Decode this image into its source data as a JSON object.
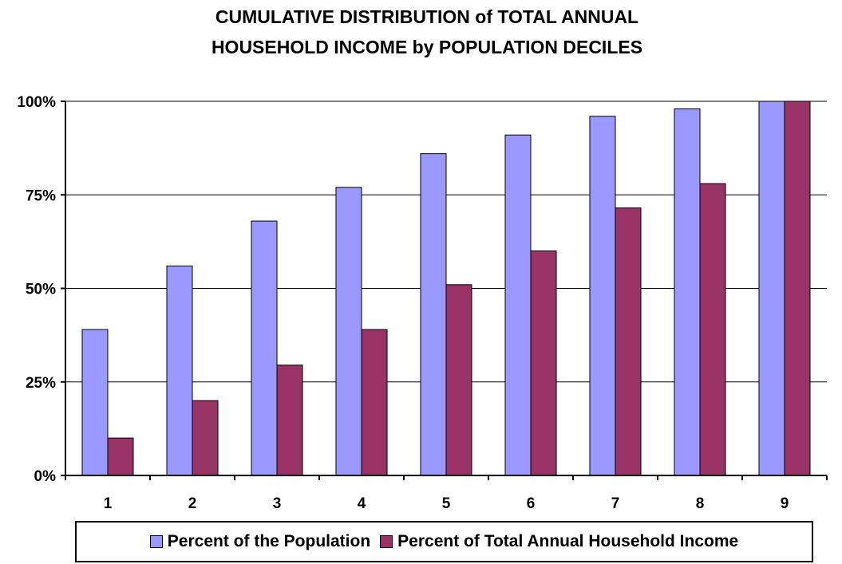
{
  "chart_data": {
    "type": "bar",
    "title_lines": [
      "CUMULATIVE DISTRIBUTION of TOTAL ANNUAL",
      "HOUSEHOLD INCOME by POPULATION DECILES"
    ],
    "categories": [
      "1",
      "2",
      "3",
      "4",
      "5",
      "6",
      "7",
      "8",
      "9"
    ],
    "series": [
      {
        "name": "Percent of the Population",
        "color": "#9999ff",
        "values": [
          39,
          56,
          68,
          77,
          86,
          91,
          96,
          98,
          100
        ]
      },
      {
        "name": "Percent of Total Annual Household Income",
        "color": "#993366",
        "values": [
          10,
          20,
          29.5,
          39,
          51,
          60,
          71.5,
          78,
          100
        ]
      }
    ],
    "y_ticks": [
      "0%",
      "25%",
      "50%",
      "75%",
      "100%"
    ],
    "ylim": [
      0,
      100
    ],
    "grid": true,
    "legend_position": "bottom"
  }
}
